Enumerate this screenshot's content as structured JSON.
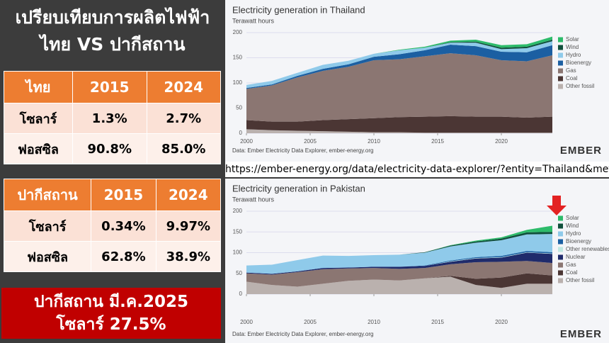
{
  "header": {
    "title_lines": [
      "เปรียบเทียบการผลิตไฟฟ้า",
      "ไทย VS ปากีสถาน"
    ]
  },
  "tables": [
    {
      "header": [
        "ไทย",
        "2015",
        "2024"
      ],
      "rows": [
        [
          "โซลาร์",
          "1.3%",
          "2.7%"
        ],
        [
          "ฟอสซิล",
          "90.8%",
          "85.0%"
        ]
      ]
    },
    {
      "header": [
        "ปากีสถาน",
        "2015",
        "2024"
      ],
      "rows": [
        [
          "โซลาร์",
          "0.34%",
          "9.97%"
        ],
        [
          "ฟอสซิล",
          "62.8%",
          "38.9%"
        ]
      ]
    }
  ],
  "url": "https://ember-energy.org/data/electricity-data-explorer/?entity=Thailand&metric=pct_share",
  "banner": {
    "lines": [
      "ปากีสถาน มี.ค.2025",
      "โซลาร์  27.5%"
    ]
  },
  "chart_data": [
    {
      "type": "area",
      "stacked": true,
      "title": "Electricity generation in Thailand",
      "subtitle": "Terawatt hours",
      "source": "Data: Ember Electricity Data Explorer, ember-energy.org",
      "logo": "EMBER",
      "legend": "right",
      "x": [
        2000,
        2002,
        2004,
        2006,
        2008,
        2010,
        2012,
        2014,
        2016,
        2018,
        2020,
        2022,
        2024
      ],
      "xlim": [
        2000,
        2024
      ],
      "xticks": [
        2000,
        2005,
        2010,
        2015,
        2020
      ],
      "ylim": [
        0,
        200
      ],
      "yticks": [
        0,
        50,
        100,
        150,
        200
      ],
      "grid": true,
      "series": [
        {
          "name": "Solar",
          "color": "#2dbb6a",
          "values": [
            0,
            0,
            0,
            0,
            0,
            0,
            1,
            2,
            3,
            4,
            5,
            5,
            6
          ]
        },
        {
          "name": "Wind",
          "color": "#10503c",
          "values": [
            0,
            0,
            0,
            0,
            0,
            0,
            0,
            0,
            1,
            2,
            3,
            3,
            3
          ]
        },
        {
          "name": "Hydro",
          "color": "#8fcaea",
          "values": [
            6,
            7,
            6,
            8,
            7,
            6,
            8,
            5,
            4,
            7,
            5,
            8,
            8
          ]
        },
        {
          "name": "Bioenergy",
          "color": "#1b5fa2",
          "values": [
            2,
            2,
            3,
            4,
            5,
            7,
            10,
            12,
            17,
            18,
            17,
            18,
            20
          ]
        },
        {
          "name": "Gas",
          "color": "#8b7672",
          "values": [
            62,
            72,
            88,
            98,
            104,
            115,
            115,
            120,
            125,
            122,
            112,
            112,
            122
          ]
        },
        {
          "name": "Coal",
          "color": "#4b3634",
          "values": [
            18,
            17,
            18,
            22,
            25,
            28,
            30,
            32,
            33,
            32,
            32,
            30,
            32
          ]
        },
        {
          "name": "Other fossil",
          "color": "#bab1ae",
          "values": [
            8,
            6,
            5,
            4,
            3,
            2,
            2,
            1,
            1,
            1,
            1,
            1,
            1
          ]
        }
      ]
    },
    {
      "type": "area",
      "stacked": true,
      "title": "Electricity generation in Pakistan",
      "subtitle": "Terawatt hours",
      "source": "Data: Ember Electricity Data Explorer, ember-energy.org",
      "logo": "EMBER",
      "legend": "right",
      "x": [
        2000,
        2002,
        2004,
        2006,
        2008,
        2010,
        2012,
        2014,
        2016,
        2018,
        2020,
        2022,
        2024
      ],
      "xlim": [
        2000,
        2024
      ],
      "xticks": [
        2000,
        2005,
        2010,
        2015,
        2020
      ],
      "ylim": [
        0,
        200
      ],
      "yticks": [
        0,
        50,
        100,
        150,
        200
      ],
      "grid": true,
      "series": [
        {
          "name": "Solar",
          "color": "#2dbb6a",
          "values": [
            0,
            0,
            0,
            0,
            0,
            0,
            0,
            0,
            1,
            2,
            3,
            6,
            15
          ]
        },
        {
          "name": "Wind",
          "color": "#10503c",
          "values": [
            0,
            0,
            0,
            0,
            0,
            0,
            0,
            1,
            2,
            3,
            4,
            5,
            5
          ]
        },
        {
          "name": "Hydro",
          "color": "#8fcaea",
          "values": [
            17,
            22,
            27,
            30,
            28,
            28,
            29,
            31,
            34,
            35,
            38,
            40,
            44
          ]
        },
        {
          "name": "Bioenergy",
          "color": "#1b5fa2",
          "values": [
            0,
            0,
            0,
            0,
            0,
            0,
            0,
            1,
            2,
            2,
            3,
            3,
            3
          ]
        },
        {
          "name": "Other renewables",
          "color": "#bfe8e2",
          "values": [
            0,
            0,
            0,
            0,
            0,
            0,
            0,
            0,
            1,
            1,
            1,
            1,
            1
          ]
        },
        {
          "name": "Nuclear",
          "color": "#1f2b6b",
          "values": [
            2,
            2,
            2,
            3,
            2,
            3,
            5,
            5,
            6,
            9,
            10,
            20,
            22
          ]
        },
        {
          "name": "Gas",
          "color": "#8b7672",
          "values": [
            20,
            25,
            35,
            35,
            30,
            28,
            28,
            25,
            28,
            40,
            38,
            30,
            30
          ]
        },
        {
          "name": "Coal",
          "color": "#4b3634",
          "values": [
            0,
            0,
            0,
            0,
            0,
            0,
            0,
            0,
            2,
            15,
            25,
            25,
            20
          ]
        },
        {
          "name": "Other fossil",
          "color": "#bab1ae",
          "values": [
            30,
            22,
            18,
            25,
            32,
            35,
            33,
            38,
            42,
            22,
            15,
            25,
            25
          ]
        }
      ]
    }
  ]
}
